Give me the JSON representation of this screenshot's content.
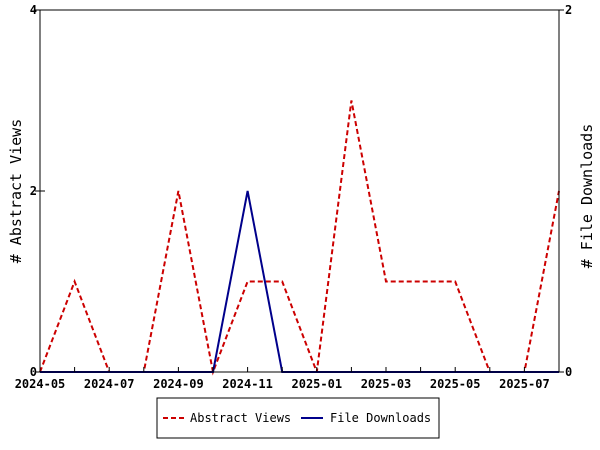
{
  "chart_data": {
    "type": "line",
    "title": "",
    "x": [
      "2024-05",
      "2024-06",
      "2024-07",
      "2024-08",
      "2024-09",
      "2024-10",
      "2024-11",
      "2024-12",
      "2025-01",
      "2025-02",
      "2025-03",
      "2025-04",
      "2025-05",
      "2025-06",
      "2025-07",
      "2025-08"
    ],
    "x_tick_labels": [
      "2024-05",
      "2024-07",
      "2024-09",
      "2024-11",
      "2025-01",
      "2025-03",
      "2025-05",
      "2025-07"
    ],
    "y_left": {
      "label": "# Abstract Views",
      "ylim": [
        0,
        4
      ],
      "ticks": [
        "0",
        "2",
        "4"
      ]
    },
    "y_right": {
      "label": "# File Downloads",
      "ylim": [
        0,
        2
      ],
      "ticks": [
        "0",
        "2"
      ]
    },
    "grid": false,
    "legend": {
      "placement": "bottom-center"
    },
    "series": [
      {
        "name": "Abstract Views",
        "axis": "left",
        "color": "#cc0000",
        "dash": true,
        "values": [
          0,
          1,
          0,
          0,
          2,
          0,
          1,
          1,
          0,
          3,
          1,
          1,
          1,
          0,
          0,
          2
        ]
      },
      {
        "name": "File Downloads",
        "axis": "right",
        "color": "#00008b",
        "dash": false,
        "values": [
          0,
          0,
          0,
          0,
          0,
          0,
          1,
          0,
          0,
          0,
          0,
          0,
          0,
          0,
          0,
          0
        ]
      }
    ]
  }
}
